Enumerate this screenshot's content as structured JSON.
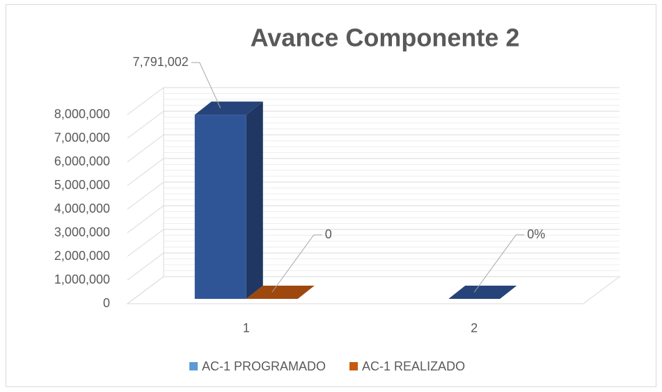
{
  "chart_data": {
    "type": "bar3d",
    "title": "Avance Componente 2",
    "categories": [
      "1",
      "2"
    ],
    "series": [
      {
        "name": "AC-1 PROGRAMADO",
        "color": "#2f5597",
        "values": [
          7791002,
          0
        ],
        "value_labels": [
          "7,791,002",
          "0%"
        ]
      },
      {
        "name": "AC-1 REALIZADO",
        "color": "#c55a11",
        "values": [
          0,
          null
        ]
      }
    ],
    "ylim": [
      0,
      8000000
    ],
    "yticks": [
      {
        "value": 0,
        "label": "0"
      },
      {
        "value": 1000000,
        "label": "1,000,000"
      },
      {
        "value": 2000000,
        "label": "2,000,000"
      },
      {
        "value": 3000000,
        "label": "3,000,000"
      },
      {
        "value": 4000000,
        "label": "4,000,000"
      },
      {
        "value": 5000000,
        "label": "5,000,000"
      },
      {
        "value": 6000000,
        "label": "6,000,000"
      },
      {
        "value": 7000000,
        "label": "7,000,000"
      },
      {
        "value": 8000000,
        "label": "8,000,000"
      }
    ],
    "grid": true,
    "legend": "bottom"
  }
}
